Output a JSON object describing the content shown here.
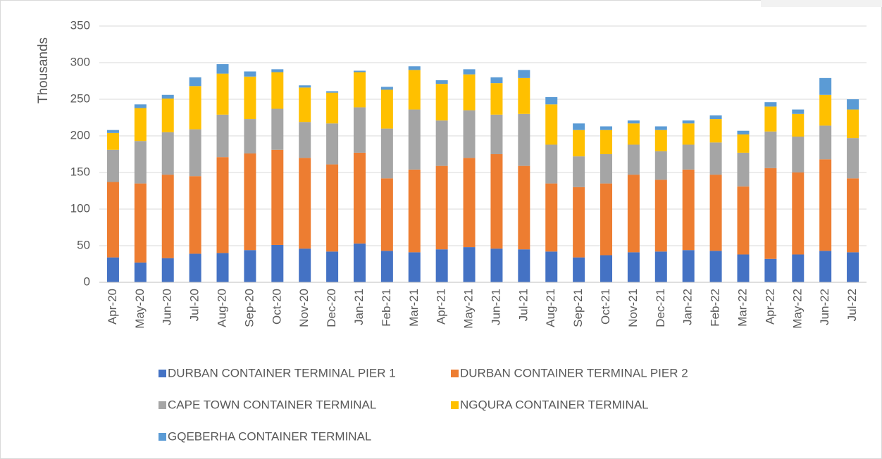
{
  "chart_data": {
    "type": "stacked_bar",
    "y_label": "Thousands",
    "categories": [
      "Apr-20",
      "May-20",
      "Jun-20",
      "Jul-20",
      "Aug-20",
      "Sep-20",
      "Oct-20",
      "Nov-20",
      "Dec-20",
      "Jan-21",
      "Feb-21",
      "Mar-21",
      "Apr-21",
      "May-21",
      "Jun-21",
      "Jul-21",
      "Aug-21",
      "Sep-21",
      "Oct-21",
      "Nov-21",
      "Dec-21",
      "Jan-22",
      "Feb-22",
      "Mar-22",
      "Apr-22",
      "May-22",
      "Jun-22",
      "Jul-22"
    ],
    "series": [
      {
        "name": "DURBAN CONTAINER TERMINAL PIER 1",
        "color": "#4472c4",
        "values": [
          34,
          27,
          33,
          39,
          40,
          44,
          51,
          46,
          42,
          53,
          43,
          41,
          45,
          48,
          46,
          45,
          42,
          34,
          37,
          41,
          42,
          44,
          43,
          38,
          32,
          38,
          43,
          41
        ]
      },
      {
        "name": "DURBAN CONTAINER TERMINAL PIER 2",
        "color": "#ed7d31",
        "values": [
          103,
          108,
          114,
          106,
          131,
          132,
          130,
          124,
          119,
          124,
          99,
          113,
          114,
          122,
          129,
          114,
          93,
          96,
          98,
          106,
          98,
          110,
          104,
          93,
          124,
          112,
          125,
          101
        ]
      },
      {
        "name": "CAPE TOWN CONTAINER TERMINAL",
        "color": "#a5a5a5",
        "values": [
          44,
          58,
          58,
          64,
          58,
          47,
          56,
          49,
          56,
          62,
          68,
          82,
          62,
          65,
          54,
          71,
          53,
          42,
          40,
          41,
          39,
          34,
          44,
          46,
          50,
          49,
          46,
          55
        ]
      },
      {
        "name": "NGQURA CONTAINER TERMINAL",
        "color": "#ffc000",
        "values": [
          23,
          45,
          46,
          59,
          56,
          58,
          50,
          47,
          42,
          48,
          53,
          54,
          50,
          49,
          43,
          49,
          55,
          36,
          33,
          29,
          29,
          29,
          32,
          25,
          34,
          31,
          42,
          39
        ]
      },
      {
        "name": "GQEBERHA CONTAINER TERMINAL",
        "color": "#5b9bd5",
        "values": [
          4,
          5,
          5,
          12,
          13,
          7,
          4,
          3,
          2,
          2,
          4,
          5,
          5,
          7,
          8,
          11,
          10,
          9,
          5,
          4,
          5,
          4,
          5,
          5,
          6,
          6,
          23,
          14
        ]
      }
    ],
    "ylim": [
      0,
      350
    ],
    "yticks": [
      0,
      50,
      100,
      150,
      200,
      250,
      300,
      350
    ],
    "grid": true
  }
}
